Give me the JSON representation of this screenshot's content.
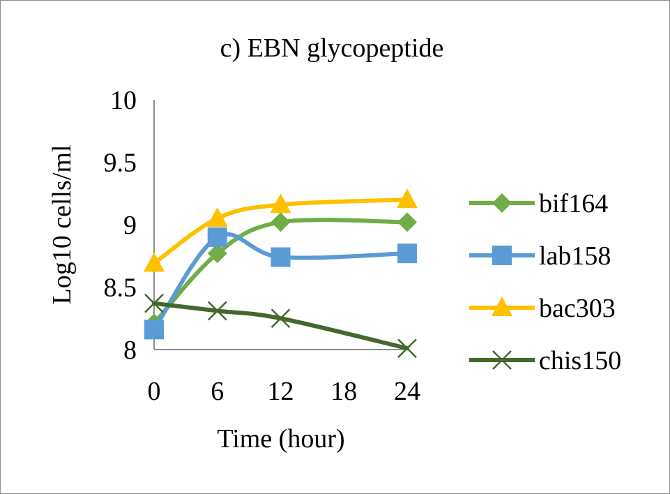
{
  "chart_data": {
    "type": "line",
    "title": "c) EBN glycopeptide",
    "xlabel": "Time (hour)",
    "ylabel": "Log10 cells/ml",
    "x": [
      0,
      6,
      12,
      24
    ],
    "xticks": [
      "0",
      "6",
      "12",
      "18",
      "24"
    ],
    "xlim": [
      0,
      24
    ],
    "ylim": [
      8,
      10
    ],
    "yticks": [
      "8",
      "8.5",
      "9",
      "9.5",
      "10"
    ],
    "grid": false,
    "smooth": true,
    "legend": "right",
    "series": [
      {
        "name": "bif164",
        "values": [
          8.21,
          8.77,
          9.02,
          9.02
        ],
        "color": "#70ad47",
        "marker": "diamond"
      },
      {
        "name": "lab158",
        "values": [
          8.16,
          8.9,
          8.74,
          8.77
        ],
        "color": "#5b9bd5",
        "marker": "square"
      },
      {
        "name": "bac303",
        "values": [
          8.69,
          9.05,
          9.16,
          9.2
        ],
        "color": "#ffc000",
        "marker": "triangle"
      },
      {
        "name": "chis150",
        "values": [
          8.37,
          8.31,
          8.25,
          8.01
        ],
        "color": "#43682b",
        "marker": "x"
      }
    ]
  }
}
